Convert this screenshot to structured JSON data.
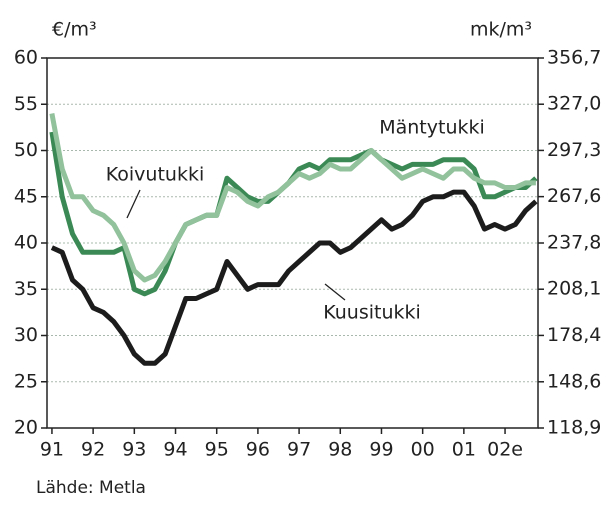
{
  "chart_data": {
    "type": "line",
    "y_label": "€/m³",
    "y2_label": "mk/m³",
    "source": "Lähde: Metla",
    "x": [
      1991,
      1991.25,
      1991.5,
      1991.75,
      1992,
      1992.25,
      1992.5,
      1992.75,
      1993,
      1993.25,
      1993.5,
      1993.75,
      1994,
      1994.25,
      1994.5,
      1994.75,
      1995,
      1995.25,
      1995.5,
      1995.75,
      1996,
      1996.25,
      1996.5,
      1996.75,
      1997,
      1997.25,
      1997.5,
      1997.75,
      1998,
      1998.25,
      1998.5,
      1998.75,
      1999,
      1999.25,
      1999.5,
      1999.75,
      2000,
      2000.25,
      2000.5,
      2000.75,
      2001,
      2001.25,
      2001.5,
      2001.75,
      2002,
      2002.25,
      2002.5,
      2002.75
    ],
    "series": [
      {
        "name": "Mäntytukki",
        "color": "#3b8a55",
        "values": [
          52,
          45,
          41,
          39,
          39,
          39,
          39,
          39.5,
          35,
          34.5,
          35,
          37,
          40,
          42,
          42.5,
          43,
          43,
          47,
          46,
          45,
          44.5,
          44.5,
          45.5,
          46.5,
          48,
          48.5,
          48,
          49,
          49,
          49,
          49.5,
          50,
          49,
          48.5,
          48,
          48.5,
          48.5,
          48.5,
          49,
          49,
          49,
          48,
          45,
          45,
          45.5,
          46,
          46,
          47
        ]
      },
      {
        "name": "Koivutukki",
        "color": "#92c29c",
        "values": [
          54,
          48,
          45,
          45,
          43.5,
          43,
          42,
          40,
          37,
          36,
          36.5,
          38,
          40,
          42,
          42.5,
          43,
          43,
          46,
          45.5,
          44.5,
          44,
          45,
          45.5,
          46.5,
          47.5,
          47,
          47.5,
          48.5,
          48,
          48,
          49,
          50,
          49,
          48,
          47,
          47.5,
          48,
          47.5,
          47,
          48,
          48,
          47,
          46.5,
          46.5,
          46,
          46,
          46.5,
          46.5
        ]
      },
      {
        "name": "Kuusitukki",
        "color": "#1c1c1c",
        "values": [
          39.5,
          39,
          36,
          35,
          33,
          32.5,
          31.5,
          30,
          28,
          27,
          27,
          28,
          31,
          34,
          34,
          34.5,
          35,
          38,
          36.5,
          35,
          35.5,
          35.5,
          35.5,
          37,
          38,
          39,
          40,
          40,
          39,
          39.5,
          40.5,
          41.5,
          42.5,
          41.5,
          42,
          43,
          44.5,
          45,
          45,
          45.5,
          45.5,
          44,
          41.5,
          42,
          41.5,
          42,
          43.5,
          44.5
        ]
      }
    ],
    "xlim": [
      1990.88,
      2002.8
    ],
    "xticks": [
      {
        "value": 1991,
        "label": "91"
      },
      {
        "value": 1992,
        "label": "92"
      },
      {
        "value": 1993,
        "label": "93"
      },
      {
        "value": 1994,
        "label": "94"
      },
      {
        "value": 1995,
        "label": "95"
      },
      {
        "value": 1996,
        "label": "96"
      },
      {
        "value": 1997,
        "label": "97"
      },
      {
        "value": 1998,
        "label": "98"
      },
      {
        "value": 1999,
        "label": "99"
      },
      {
        "value": 2000,
        "label": "00"
      },
      {
        "value": 2001,
        "label": "01"
      },
      {
        "value": 2002,
        "label": "02e"
      }
    ],
    "ylim": [
      20,
      60
    ],
    "yticks": [
      20,
      25,
      30,
      35,
      40,
      45,
      50,
      55,
      60
    ],
    "y2lim": [
      118.9,
      356.7
    ],
    "y2ticks": [
      {
        "value": 118.9,
        "label": "118,9"
      },
      {
        "value": 148.6,
        "label": "148,6"
      },
      {
        "value": 178.4,
        "label": "178,4"
      },
      {
        "value": 208.1,
        "label": "208,1"
      },
      {
        "value": 237.8,
        "label": "237,8"
      },
      {
        "value": 267.6,
        "label": "267,6"
      },
      {
        "value": 297.3,
        "label": "297,3"
      },
      {
        "value": 327.0,
        "label": "327,0"
      },
      {
        "value": 356.7,
        "label": "356,7"
      }
    ],
    "grid": true
  }
}
